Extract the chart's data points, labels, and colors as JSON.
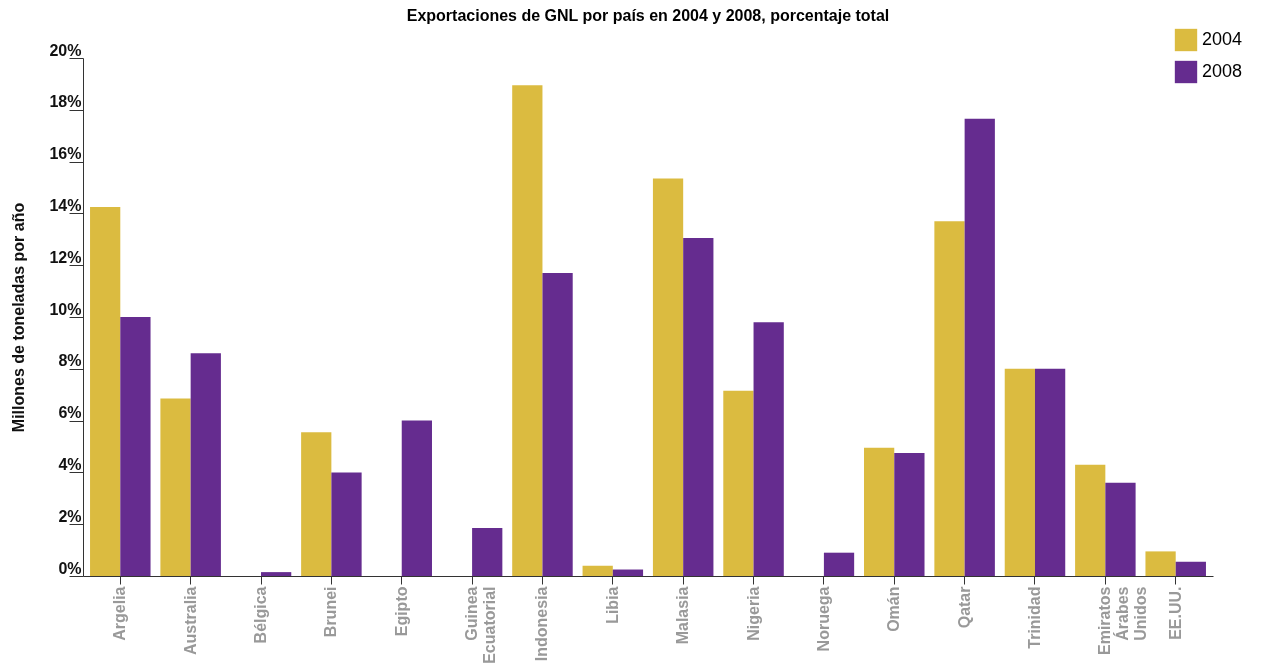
{
  "chart_data": {
    "type": "bar",
    "title": "Exportaciones de GNL por país en 2004 y 2008, porcentaje total",
    "ylabel": "Millones de toneladas por año",
    "categories": [
      "Argelia",
      "Australia",
      "Bélgica",
      "Brunei",
      "Egipto",
      "Guinea Ecuatorial",
      "Indonesia",
      "Libia",
      "Malasia",
      "Nigeria",
      "Noruega",
      "Omán",
      "Qatar",
      "Trinidad",
      "Emiratos Árabes Unidos",
      "EE.UU."
    ],
    "series": [
      {
        "name": "2004",
        "color": "#dbbb40",
        "values": [
          14.25,
          6.85,
          0,
          5.55,
          0,
          0,
          18.95,
          0.4,
          15.35,
          7.15,
          0,
          4.95,
          13.7,
          8.0,
          4.3,
          0.95
        ]
      },
      {
        "name": "2008",
        "color": "#652c8f",
        "values": [
          10.0,
          8.6,
          0.15,
          4.0,
          6.0,
          1.85,
          11.7,
          0.25,
          13.05,
          9.8,
          0.9,
          4.75,
          17.65,
          8.0,
          3.6,
          0.55
        ]
      }
    ],
    "ylim": [
      0,
      20
    ],
    "yticks": [
      {
        "value": 0,
        "label": "0%"
      },
      {
        "value": 2,
        "label": "2%"
      },
      {
        "value": 4,
        "label": "4%"
      },
      {
        "value": 6,
        "label": "6%"
      },
      {
        "value": 8,
        "label": "8%"
      },
      {
        "value": 10,
        "label": "10%"
      },
      {
        "value": 12,
        "label": "12%"
      },
      {
        "value": 14,
        "label": "14%"
      },
      {
        "value": 16,
        "label": "16%"
      },
      {
        "value": 18,
        "label": "18%"
      },
      {
        "value": 20,
        "label": "20%"
      }
    ],
    "grid": false,
    "legend": "top right"
  }
}
